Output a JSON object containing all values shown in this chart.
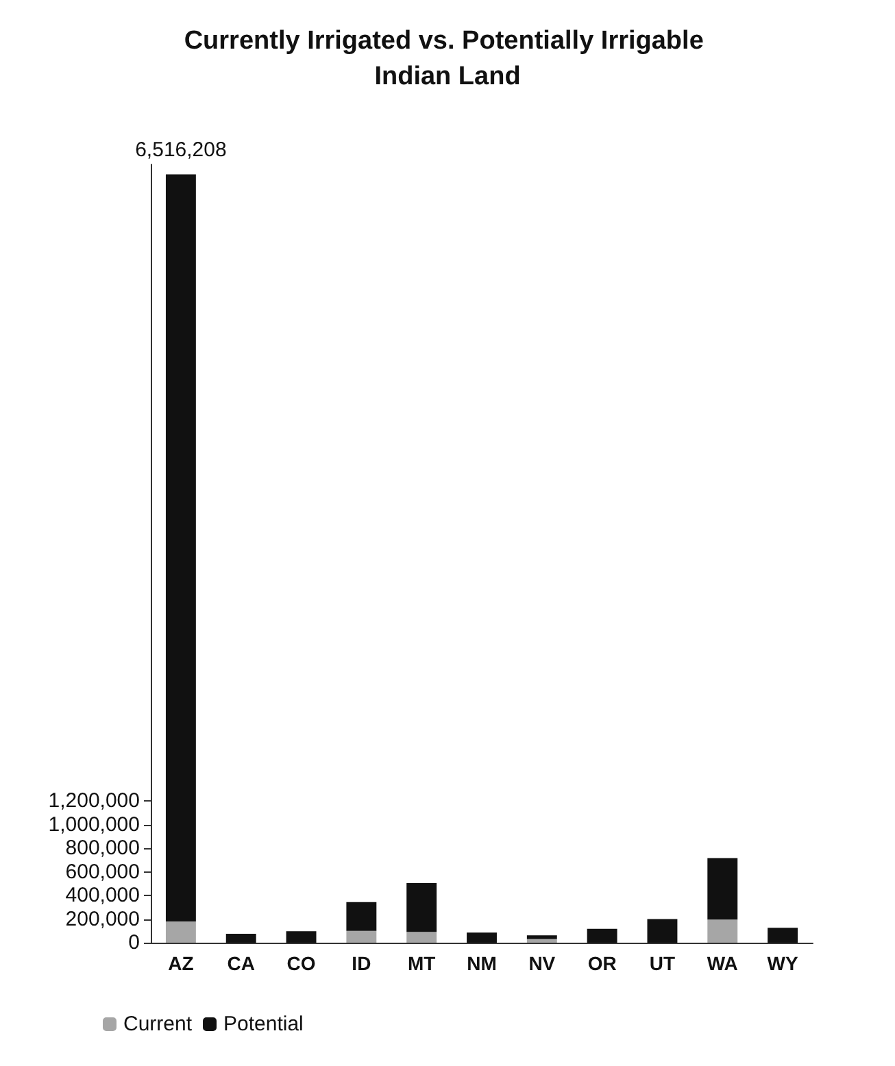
{
  "chart_data": {
    "type": "bar",
    "title": "Currently Irrigated vs. Potentially Irrigable Indian Land",
    "categories": [
      "AZ",
      "CA",
      "CO",
      "ID",
      "MT",
      "NM",
      "NV",
      "OR",
      "UT",
      "WA",
      "WY"
    ],
    "series": [
      {
        "name": "Current",
        "color": "#a6a6a6",
        "values": [
          180000,
          0,
          0,
          100000,
          92000,
          0,
          30000,
          0,
          0,
          196000,
          0
        ]
      },
      {
        "name": "Potential",
        "color": "#111111",
        "values": [
          6336208,
          76000,
          98000,
          244000,
          413000,
          85000,
          33000,
          117000,
          200000,
          521000,
          126000
        ]
      }
    ],
    "stacked": true,
    "totals": [
      "6,516,208",
      null,
      null,
      null,
      null,
      null,
      null,
      null,
      null,
      null,
      null
    ],
    "ylim": [
      0,
      6600000
    ],
    "yticks": [
      0,
      {
        "value": 200000,
        "label": "200,000"
      },
      {
        "value": 400000,
        "label": "400,000"
      },
      {
        "value": 600000,
        "label": "600,000"
      },
      {
        "value": 800000,
        "label": "800,000"
      },
      {
        "value": 1000000,
        "label": "1,000,000"
      },
      {
        "value": 1200000,
        "label": "1,200,000"
      }
    ],
    "grid": false,
    "legend": "bottom left"
  }
}
